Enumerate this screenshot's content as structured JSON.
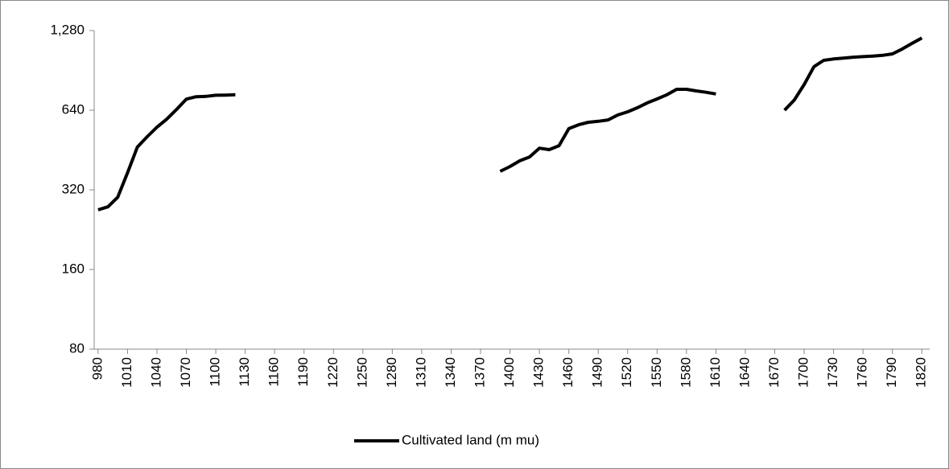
{
  "chart_data": {
    "type": "line",
    "x": [
      980,
      990,
      1000,
      1010,
      1020,
      1030,
      1040,
      1050,
      1060,
      1070,
      1080,
      1090,
      1100,
      1110,
      1120,
      1130,
      1140,
      1150,
      1160,
      1170,
      1180,
      1190,
      1200,
      1210,
      1220,
      1230,
      1240,
      1250,
      1260,
      1270,
      1280,
      1290,
      1300,
      1310,
      1320,
      1330,
      1340,
      1350,
      1360,
      1370,
      1380,
      1390,
      1400,
      1410,
      1420,
      1430,
      1440,
      1450,
      1460,
      1470,
      1480,
      1490,
      1500,
      1510,
      1520,
      1530,
      1540,
      1550,
      1560,
      1570,
      1580,
      1590,
      1600,
      1610,
      1620,
      1630,
      1640,
      1650,
      1660,
      1670,
      1680,
      1690,
      1700,
      1710,
      1720,
      1730,
      1740,
      1750,
      1760,
      1770,
      1780,
      1790,
      1800,
      1810,
      1820
    ],
    "series": [
      {
        "name": "Cultivated land (m mu)",
        "color": "#000000",
        "values": [
          269,
          276,
          300,
          371,
          464,
          508,
          552,
          592,
          644,
          705,
          720,
          722,
          729,
          730,
          732,
          null,
          null,
          null,
          null,
          null,
          null,
          null,
          null,
          null,
          null,
          null,
          null,
          null,
          null,
          null,
          null,
          null,
          null,
          null,
          null,
          null,
          null,
          null,
          null,
          null,
          null,
          376,
          392,
          412,
          426,
          460,
          454,
          470,
          545,
          564,
          576,
          581,
          588,
          614,
          631,
          654,
          682,
          706,
          732,
          768,
          768,
          757,
          748,
          737,
          null,
          null,
          null,
          null,
          null,
          null,
          640,
          700,
          801,
          935,
          988,
          1000,
          1007,
          1015,
          1020,
          1025,
          1032,
          1045,
          1090,
          1145,
          1200
        ]
      }
    ],
    "xlim": [
      976,
      1828
    ],
    "xticks": [
      980,
      1010,
      1040,
      1070,
      1100,
      1130,
      1160,
      1190,
      1220,
      1250,
      1280,
      1310,
      1340,
      1370,
      1400,
      1430,
      1460,
      1490,
      1520,
      1550,
      1580,
      1610,
      1640,
      1670,
      1700,
      1730,
      1760,
      1790,
      1820
    ],
    "ylim": [
      80,
      1280
    ],
    "yticks": [
      80,
      160,
      320,
      640,
      {
        "value": 1280,
        "label": "1,280"
      }
    ],
    "yscale": "log",
    "grid": false,
    "legend": "bottom"
  }
}
